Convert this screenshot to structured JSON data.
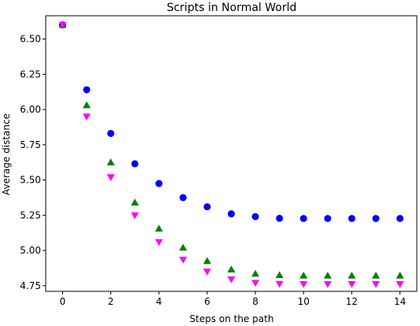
{
  "chart_data": {
    "type": "scatter",
    "title": "Scripts in Normal World",
    "xlabel": "Steps on the path",
    "ylabel": "Average distance",
    "xlim": [
      -0.7,
      14.7
    ],
    "ylim": [
      4.71,
      6.665
    ],
    "x_ticks": [
      0,
      2,
      4,
      6,
      8,
      10,
      12,
      14
    ],
    "y_ticks": [
      4.75,
      5.0,
      5.25,
      5.5,
      5.75,
      6.0,
      6.25,
      6.5
    ],
    "grid": false,
    "x": [
      0,
      1,
      2,
      3,
      4,
      5,
      6,
      7,
      8,
      9,
      10,
      11,
      12,
      13,
      14
    ],
    "series": [
      {
        "marker": "circle",
        "color": "#0000ff",
        "values": [
          6.6,
          6.14,
          5.83,
          5.615,
          5.475,
          5.375,
          5.31,
          5.26,
          5.24,
          5.228,
          5.227,
          5.227,
          5.227,
          5.227,
          5.227
        ]
      },
      {
        "marker": "triangle-up",
        "color": "#008000",
        "values": [
          6.6,
          6.03,
          5.625,
          5.34,
          5.155,
          5.02,
          4.925,
          4.865,
          4.835,
          4.825,
          4.822,
          4.822,
          4.822,
          4.822,
          4.822
        ]
      },
      {
        "marker": "triangle-down",
        "color": "#ff00ff",
        "values": [
          6.6,
          5.95,
          5.52,
          5.25,
          5.06,
          4.935,
          4.85,
          4.795,
          4.77,
          4.763,
          4.762,
          4.762,
          4.762,
          4.762,
          4.762
        ]
      }
    ]
  }
}
